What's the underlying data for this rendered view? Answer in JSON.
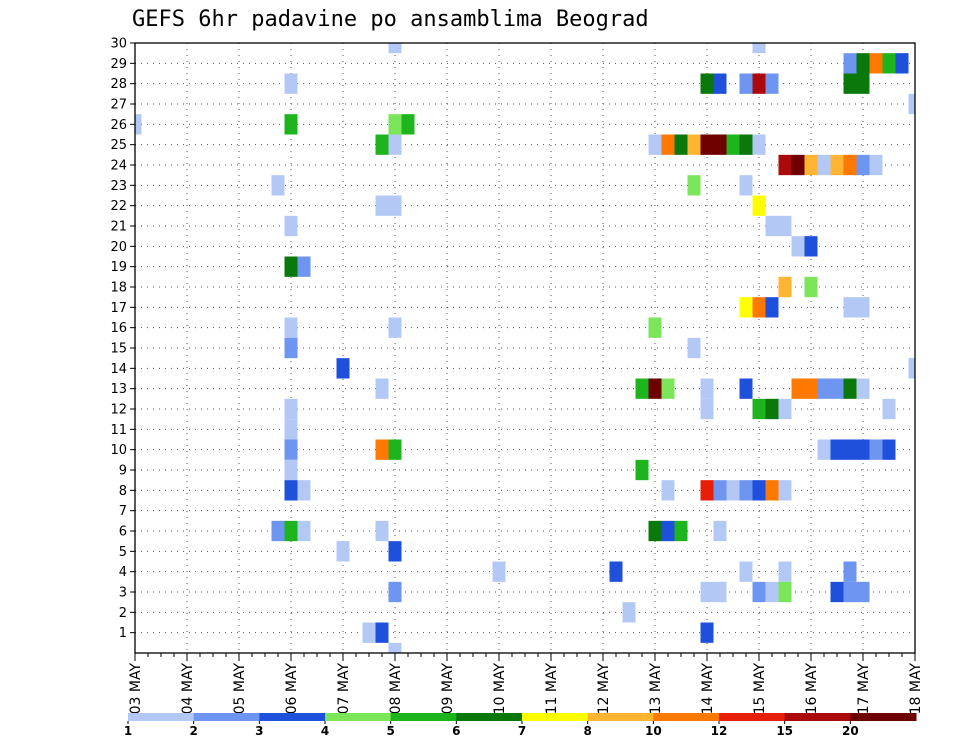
{
  "chart_data": {
    "type": "heatmap",
    "title": "GEFS 6hr padavine po ansamblima Beograd",
    "xlabel": "",
    "ylabel": "",
    "x_tick_labels": [
      "03 MAY",
      "04 MAY",
      "05 MAY",
      "06 MAY",
      "07 MAY",
      "08 MAY",
      "09 MAY",
      "10 MAY",
      "11 MAY",
      "12 MAY",
      "13 MAY",
      "14 MAY",
      "15 MAY",
      "16 MAY",
      "17 MAY",
      "18 MAY"
    ],
    "x_range_days": [
      0,
      15
    ],
    "y_tick_labels": [
      "1",
      "2",
      "3",
      "4",
      "5",
      "6",
      "7",
      "8",
      "9",
      "10",
      "11",
      "12",
      "13",
      "14",
      "15",
      "16",
      "17",
      "18",
      "19",
      "20",
      "21",
      "22",
      "23",
      "24",
      "25",
      "26",
      "27",
      "28",
      "29",
      "30"
    ],
    "y_range": [
      0,
      30
    ],
    "grid": true,
    "legend": {
      "position": "bottom",
      "labels": [
        "1",
        "2",
        "3",
        "4",
        "5",
        "6",
        "7",
        "8",
        "10",
        "12",
        "15",
        "20"
      ],
      "colors": [
        "#b4c8f5",
        "#6e96f0",
        "#1e50dc",
        "#7ce65a",
        "#1eb41e",
        "#0a780a",
        "#ffff00",
        "#ffb432",
        "#ff7800",
        "#e61e0a",
        "#aa0a0a",
        "#6e0000"
      ]
    },
    "cells": [
      {
        "y": 30,
        "x": 5.0,
        "cls": 1
      },
      {
        "y": 30,
        "x": 12.0,
        "cls": 1
      },
      {
        "y": 29,
        "x": 13.75,
        "cls": 2
      },
      {
        "y": 29,
        "x": 14.0,
        "cls": 6
      },
      {
        "y": 29,
        "x": 14.25,
        "cls": 9
      },
      {
        "y": 29,
        "x": 14.5,
        "cls": 5
      },
      {
        "y": 29,
        "x": 14.75,
        "cls": 3
      },
      {
        "y": 28,
        "x": 3.0,
        "cls": 1
      },
      {
        "y": 28,
        "x": 11.0,
        "cls": 6
      },
      {
        "y": 28,
        "x": 11.25,
        "cls": 3
      },
      {
        "y": 28,
        "x": 11.75,
        "cls": 2
      },
      {
        "y": 28,
        "x": 12.0,
        "cls": 11
      },
      {
        "y": 28,
        "x": 12.25,
        "cls": 2
      },
      {
        "y": 28,
        "x": 13.75,
        "cls": 6
      },
      {
        "y": 28,
        "x": 14.0,
        "cls": 6
      },
      {
        "y": 27,
        "x": 15.0,
        "cls": 1
      },
      {
        "y": 26,
        "x": 0.0,
        "cls": 1
      },
      {
        "y": 26,
        "x": 3.0,
        "cls": 5
      },
      {
        "y": 26,
        "x": 5.0,
        "cls": 4
      },
      {
        "y": 26,
        "x": 5.25,
        "cls": 5
      },
      {
        "y": 25,
        "x": 4.75,
        "cls": 5
      },
      {
        "y": 25,
        "x": 5.0,
        "cls": 1
      },
      {
        "y": 25,
        "x": 10.0,
        "cls": 1
      },
      {
        "y": 25,
        "x": 10.25,
        "cls": 9
      },
      {
        "y": 25,
        "x": 10.5,
        "cls": 6
      },
      {
        "y": 25,
        "x": 10.75,
        "cls": 8
      },
      {
        "y": 25,
        "x": 11.0,
        "cls": 12
      },
      {
        "y": 25,
        "x": 11.25,
        "cls": 12
      },
      {
        "y": 25,
        "x": 11.5,
        "cls": 5
      },
      {
        "y": 25,
        "x": 11.75,
        "cls": 6
      },
      {
        "y": 25,
        "x": 12.0,
        "cls": 1
      },
      {
        "y": 24,
        "x": 12.5,
        "cls": 11
      },
      {
        "y": 24,
        "x": 12.75,
        "cls": 12
      },
      {
        "y": 24,
        "x": 13.0,
        "cls": 8
      },
      {
        "y": 24,
        "x": 13.25,
        "cls": 1
      },
      {
        "y": 24,
        "x": 13.5,
        "cls": 8
      },
      {
        "y": 24,
        "x": 13.75,
        "cls": 9
      },
      {
        "y": 24,
        "x": 14.0,
        "cls": 2
      },
      {
        "y": 24,
        "x": 14.25,
        "cls": 1
      },
      {
        "y": 23,
        "x": 2.75,
        "cls": 1
      },
      {
        "y": 23,
        "x": 10.75,
        "cls": 4
      },
      {
        "y": 23,
        "x": 11.75,
        "cls": 1
      },
      {
        "y": 22,
        "x": 4.75,
        "cls": 1
      },
      {
        "y": 22,
        "x": 5.0,
        "cls": 1
      },
      {
        "y": 22,
        "x": 12.0,
        "cls": 7
      },
      {
        "y": 21,
        "x": 3.0,
        "cls": 1
      },
      {
        "y": 21,
        "x": 12.25,
        "cls": 1
      },
      {
        "y": 21,
        "x": 12.5,
        "cls": 1
      },
      {
        "y": 20,
        "x": 12.75,
        "cls": 1
      },
      {
        "y": 20,
        "x": 13.0,
        "cls": 3
      },
      {
        "y": 19,
        "x": 3.0,
        "cls": 6
      },
      {
        "y": 19,
        "x": 3.25,
        "cls": 2
      },
      {
        "y": 18,
        "x": 12.5,
        "cls": 8
      },
      {
        "y": 18,
        "x": 13.0,
        "cls": 4
      },
      {
        "y": 17,
        "x": 11.75,
        "cls": 7
      },
      {
        "y": 17,
        "x": 12.0,
        "cls": 9
      },
      {
        "y": 17,
        "x": 12.25,
        "cls": 3
      },
      {
        "y": 17,
        "x": 13.75,
        "cls": 1
      },
      {
        "y": 17,
        "x": 14.0,
        "cls": 1
      },
      {
        "y": 16,
        "x": 3.0,
        "cls": 1
      },
      {
        "y": 16,
        "x": 5.0,
        "cls": 1
      },
      {
        "y": 16,
        "x": 10.0,
        "cls": 4
      },
      {
        "y": 15,
        "x": 3.0,
        "cls": 2
      },
      {
        "y": 15,
        "x": 10.75,
        "cls": 1
      },
      {
        "y": 14,
        "x": 4.0,
        "cls": 3
      },
      {
        "y": 14,
        "x": 15.0,
        "cls": 1
      },
      {
        "y": 13,
        "x": 4.75,
        "cls": 1
      },
      {
        "y": 13,
        "x": 9.75,
        "cls": 5
      },
      {
        "y": 13,
        "x": 10.0,
        "cls": 12
      },
      {
        "y": 13,
        "x": 10.25,
        "cls": 4
      },
      {
        "y": 13,
        "x": 11.0,
        "cls": 1
      },
      {
        "y": 13,
        "x": 11.75,
        "cls": 3
      },
      {
        "y": 13,
        "x": 12.75,
        "cls": 9
      },
      {
        "y": 13,
        "x": 13.0,
        "cls": 9
      },
      {
        "y": 13,
        "x": 13.25,
        "cls": 2
      },
      {
        "y": 13,
        "x": 13.5,
        "cls": 2
      },
      {
        "y": 13,
        "x": 13.75,
        "cls": 6
      },
      {
        "y": 13,
        "x": 14.0,
        "cls": 1
      },
      {
        "y": 12,
        "x": 3.0,
        "cls": 1
      },
      {
        "y": 12,
        "x": 11.0,
        "cls": 1
      },
      {
        "y": 12,
        "x": 12.0,
        "cls": 5
      },
      {
        "y": 12,
        "x": 12.25,
        "cls": 6
      },
      {
        "y": 12,
        "x": 12.5,
        "cls": 1
      },
      {
        "y": 12,
        "x": 14.5,
        "cls": 1
      },
      {
        "y": 11,
        "x": 3.0,
        "cls": 1
      },
      {
        "y": 10,
        "x": 3.0,
        "cls": 2
      },
      {
        "y": 10,
        "x": 4.75,
        "cls": 9
      },
      {
        "y": 10,
        "x": 5.0,
        "cls": 5
      },
      {
        "y": 10,
        "x": 13.25,
        "cls": 1
      },
      {
        "y": 10,
        "x": 13.5,
        "cls": 3
      },
      {
        "y": 10,
        "x": 13.75,
        "cls": 3
      },
      {
        "y": 10,
        "x": 14.0,
        "cls": 3
      },
      {
        "y": 10,
        "x": 14.25,
        "cls": 2
      },
      {
        "y": 10,
        "x": 14.5,
        "cls": 3
      },
      {
        "y": 9,
        "x": 3.0,
        "cls": 1
      },
      {
        "y": 9,
        "x": 9.75,
        "cls": 5
      },
      {
        "y": 8,
        "x": 3.0,
        "cls": 3
      },
      {
        "y": 8,
        "x": 3.25,
        "cls": 1
      },
      {
        "y": 8,
        "x": 10.25,
        "cls": 1
      },
      {
        "y": 8,
        "x": 11.0,
        "cls": 10
      },
      {
        "y": 8,
        "x": 11.25,
        "cls": 2
      },
      {
        "y": 8,
        "x": 11.5,
        "cls": 1
      },
      {
        "y": 8,
        "x": 11.75,
        "cls": 2
      },
      {
        "y": 8,
        "x": 12.0,
        "cls": 3
      },
      {
        "y": 8,
        "x": 12.25,
        "cls": 9
      },
      {
        "y": 8,
        "x": 12.5,
        "cls": 1
      },
      {
        "y": 6,
        "x": 2.75,
        "cls": 2
      },
      {
        "y": 6,
        "x": 3.0,
        "cls": 5
      },
      {
        "y": 6,
        "x": 3.25,
        "cls": 1
      },
      {
        "y": 6,
        "x": 4.75,
        "cls": 1
      },
      {
        "y": 6,
        "x": 10.0,
        "cls": 6
      },
      {
        "y": 6,
        "x": 10.25,
        "cls": 3
      },
      {
        "y": 6,
        "x": 10.5,
        "cls": 5
      },
      {
        "y": 6,
        "x": 11.25,
        "cls": 1
      },
      {
        "y": 5,
        "x": 4.0,
        "cls": 1
      },
      {
        "y": 5,
        "x": 5.0,
        "cls": 3
      },
      {
        "y": 4,
        "x": 7.0,
        "cls": 1
      },
      {
        "y": 4,
        "x": 9.25,
        "cls": 3
      },
      {
        "y": 4,
        "x": 11.75,
        "cls": 1
      },
      {
        "y": 4,
        "x": 12.5,
        "cls": 1
      },
      {
        "y": 4,
        "x": 13.75,
        "cls": 2
      },
      {
        "y": 3,
        "x": 5.0,
        "cls": 2
      },
      {
        "y": 3,
        "x": 11.0,
        "cls": 1
      },
      {
        "y": 3,
        "x": 11.25,
        "cls": 1
      },
      {
        "y": 3,
        "x": 12.0,
        "cls": 2
      },
      {
        "y": 3,
        "x": 12.25,
        "cls": 1
      },
      {
        "y": 3,
        "x": 12.5,
        "cls": 4
      },
      {
        "y": 3,
        "x": 13.5,
        "cls": 3
      },
      {
        "y": 3,
        "x": 13.75,
        "cls": 2
      },
      {
        "y": 3,
        "x": 14.0,
        "cls": 2
      },
      {
        "y": 2,
        "x": 9.5,
        "cls": 1
      },
      {
        "y": 1,
        "x": 4.5,
        "cls": 1
      },
      {
        "y": 1,
        "x": 4.75,
        "cls": 3
      },
      {
        "y": 1,
        "x": 11.0,
        "cls": 3
      },
      {
        "y": 0,
        "x": 5.0,
        "cls": 1
      }
    ]
  }
}
